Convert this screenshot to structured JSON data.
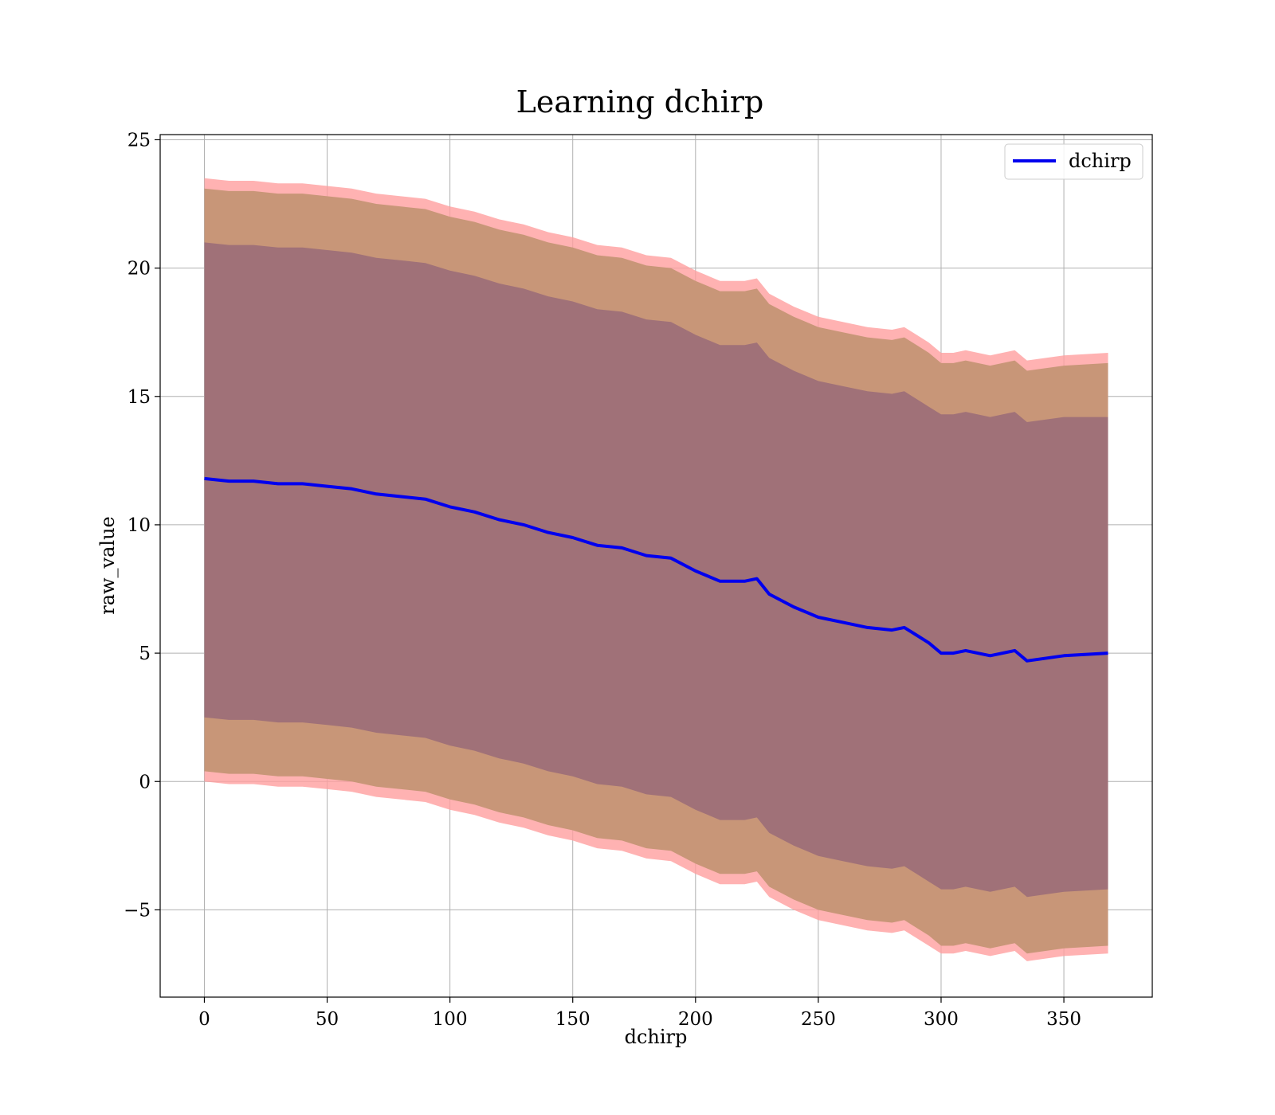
{
  "chart_data": {
    "type": "line",
    "title": "Learning dchirp",
    "xlabel": "dchirp",
    "ylabel": "raw_value",
    "xlim": [
      -18,
      386
    ],
    "ylim": [
      -8.4,
      25.2
    ],
    "xticks": [
      0,
      50,
      100,
      150,
      200,
      250,
      300,
      350
    ],
    "yticks": [
      -5,
      0,
      5,
      10,
      15,
      20,
      25
    ],
    "xtick_labels": [
      "0",
      "50",
      "100",
      "150",
      "200",
      "250",
      "300",
      "350"
    ],
    "ytick_labels": [
      "−5",
      "0",
      "5",
      "10",
      "15",
      "20",
      "25"
    ],
    "grid": true,
    "legend": {
      "position": "top-right",
      "entries": [
        "dchirp"
      ]
    },
    "colors": {
      "line": "#0000ee",
      "outer_band": "#ff9f9f",
      "middle_band": "#c89678",
      "inner_band": "#a07178",
      "grid": "#b0b0b0"
    },
    "x": [
      0,
      10,
      20,
      30,
      40,
      50,
      60,
      70,
      80,
      90,
      100,
      110,
      120,
      130,
      140,
      150,
      160,
      170,
      180,
      190,
      200,
      210,
      220,
      225,
      230,
      240,
      250,
      260,
      270,
      280,
      285,
      290,
      295,
      300,
      305,
      310,
      320,
      330,
      335,
      350,
      368
    ],
    "series": [
      {
        "name": "dchirp",
        "values": [
          11.8,
          11.7,
          11.7,
          11.6,
          11.6,
          11.5,
          11.4,
          11.2,
          11.1,
          11.0,
          10.7,
          10.5,
          10.2,
          10.0,
          9.7,
          9.5,
          9.2,
          9.1,
          8.8,
          8.7,
          8.2,
          7.8,
          7.8,
          7.9,
          7.3,
          6.8,
          6.4,
          6.2,
          6.0,
          5.9,
          6.0,
          5.7,
          5.4,
          5.0,
          5.0,
          5.1,
          4.9,
          5.1,
          4.7,
          4.9,
          5.0
        ]
      }
    ],
    "bands": [
      {
        "lower": [
          0.0,
          -0.1,
          -0.1,
          -0.2,
          -0.2,
          -0.3,
          -0.4,
          -0.6,
          -0.7,
          -0.8,
          -1.1,
          -1.3,
          -1.6,
          -1.8,
          -2.1,
          -2.3,
          -2.6,
          -2.7,
          -3.0,
          -3.1,
          -3.6,
          -4.0,
          -4.0,
          -3.9,
          -4.5,
          -5.0,
          -5.4,
          -5.6,
          -5.8,
          -5.9,
          -5.8,
          -6.1,
          -6.4,
          -6.7,
          -6.7,
          -6.6,
          -6.8,
          -6.6,
          -7.0,
          -6.8,
          -6.7
        ],
        "upper": [
          23.5,
          23.4,
          23.4,
          23.3,
          23.3,
          23.2,
          23.1,
          22.9,
          22.8,
          22.7,
          22.4,
          22.2,
          21.9,
          21.7,
          21.4,
          21.2,
          20.9,
          20.8,
          20.5,
          20.4,
          19.9,
          19.5,
          19.5,
          19.6,
          19.0,
          18.5,
          18.1,
          17.9,
          17.7,
          17.6,
          17.7,
          17.4,
          17.1,
          16.7,
          16.7,
          16.8,
          16.6,
          16.8,
          16.4,
          16.6,
          16.7
        ]
      },
      {
        "lower": [
          0.4,
          0.3,
          0.3,
          0.2,
          0.2,
          0.1,
          0.0,
          -0.2,
          -0.3,
          -0.4,
          -0.7,
          -0.9,
          -1.2,
          -1.4,
          -1.7,
          -1.9,
          -2.2,
          -2.3,
          -2.6,
          -2.7,
          -3.2,
          -3.6,
          -3.6,
          -3.5,
          -4.1,
          -4.6,
          -5.0,
          -5.2,
          -5.4,
          -5.5,
          -5.4,
          -5.7,
          -6.0,
          -6.4,
          -6.4,
          -6.3,
          -6.5,
          -6.3,
          -6.7,
          -6.5,
          -6.4
        ],
        "upper": [
          23.1,
          23.0,
          23.0,
          22.9,
          22.9,
          22.8,
          22.7,
          22.5,
          22.4,
          22.3,
          22.0,
          21.8,
          21.5,
          21.3,
          21.0,
          20.8,
          20.5,
          20.4,
          20.1,
          20.0,
          19.5,
          19.1,
          19.1,
          19.2,
          18.6,
          18.1,
          17.7,
          17.5,
          17.3,
          17.2,
          17.3,
          17.0,
          16.7,
          16.3,
          16.3,
          16.4,
          16.2,
          16.4,
          16.0,
          16.2,
          16.3
        ]
      },
      {
        "lower": [
          2.5,
          2.4,
          2.4,
          2.3,
          2.3,
          2.2,
          2.1,
          1.9,
          1.8,
          1.7,
          1.4,
          1.2,
          0.9,
          0.7,
          0.4,
          0.2,
          -0.1,
          -0.2,
          -0.5,
          -0.6,
          -1.1,
          -1.5,
          -1.5,
          -1.4,
          -2.0,
          -2.5,
          -2.9,
          -3.1,
          -3.3,
          -3.4,
          -3.3,
          -3.6,
          -3.9,
          -4.2,
          -4.2,
          -4.1,
          -4.3,
          -4.1,
          -4.5,
          -4.3,
          -4.2
        ],
        "upper": [
          21.0,
          20.9,
          20.9,
          20.8,
          20.8,
          20.7,
          20.6,
          20.4,
          20.3,
          20.2,
          19.9,
          19.7,
          19.4,
          19.2,
          18.9,
          18.7,
          18.4,
          18.3,
          18.0,
          17.9,
          17.4,
          17.0,
          17.0,
          17.1,
          16.5,
          16.0,
          15.6,
          15.4,
          15.2,
          15.1,
          15.2,
          14.9,
          14.6,
          14.3,
          14.3,
          14.4,
          14.2,
          14.4,
          14.0,
          14.2,
          14.2
        ]
      }
    ]
  }
}
